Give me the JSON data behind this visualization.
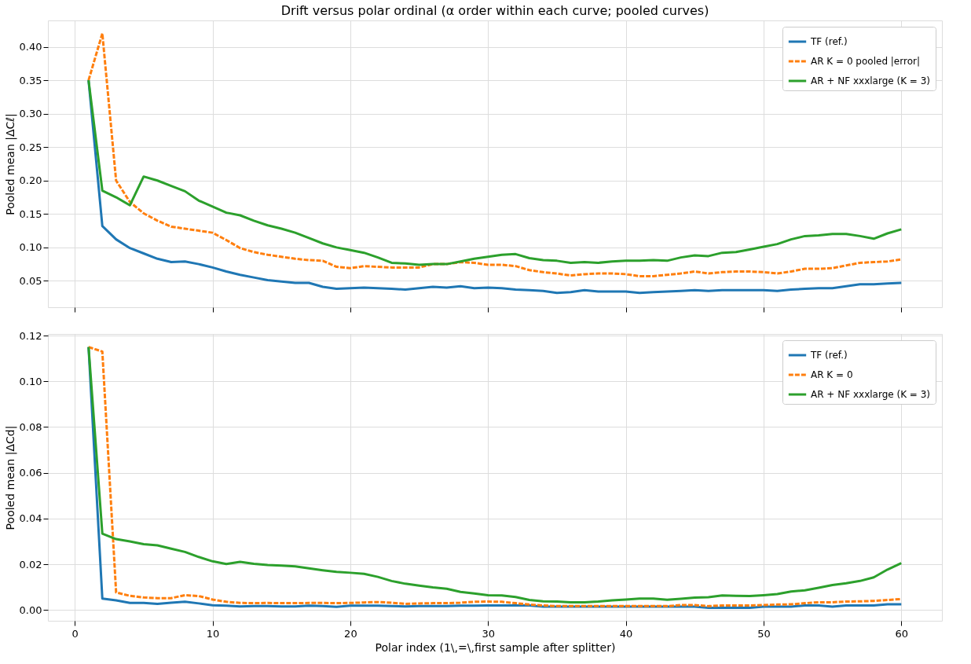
{
  "chart_data": [
    {
      "type": "line",
      "title": "Drift versus polar ordinal (α order within each curve; pooled curves)",
      "ylabel": "Pooled mean |ΔCℓ|",
      "x": [
        1,
        2,
        3,
        4,
        5,
        6,
        7,
        8,
        9,
        10,
        11,
        12,
        13,
        14,
        15,
        16,
        17,
        18,
        19,
        20,
        21,
        22,
        23,
        24,
        25,
        26,
        27,
        28,
        29,
        30,
        31,
        32,
        33,
        34,
        35,
        36,
        37,
        38,
        39,
        40,
        41,
        42,
        43,
        44,
        45,
        46,
        47,
        48,
        49,
        50,
        51,
        52,
        53,
        54,
        55,
        56,
        57,
        58,
        59,
        60
      ],
      "xlim": [
        -1.95,
        62.95
      ],
      "xticks": [
        0,
        10,
        20,
        30,
        40,
        50,
        60
      ],
      "ylim": [
        0.0105,
        0.4395
      ],
      "yticks": [
        {
          "value": 0.05,
          "label": "0.05"
        },
        {
          "value": 0.1,
          "label": "0.10"
        },
        0.15,
        {
          "value": 0.2,
          "label": "0.20"
        },
        0.25,
        {
          "value": 0.3,
          "label": "0.30"
        },
        0.35,
        {
          "value": 0.4,
          "label": "0.40"
        }
      ],
      "grid": true,
      "legend": "top right",
      "tick_labels": "y",
      "series": [
        {
          "name": "TF (ref.)",
          "color": "#1f77b4",
          "line_style": "solid",
          "values": [
            0.35,
            0.132,
            0.112,
            0.099,
            0.091,
            0.083,
            0.078,
            0.079,
            0.075,
            0.07,
            0.064,
            0.059,
            0.055,
            0.051,
            0.049,
            0.047,
            0.047,
            0.041,
            0.038,
            0.039,
            0.04,
            0.039,
            0.038,
            0.037,
            0.039,
            0.041,
            0.04,
            0.042,
            0.039,
            0.04,
            0.039,
            0.037,
            0.036,
            0.035,
            0.032,
            0.033,
            0.036,
            0.034,
            0.034,
            0.034,
            0.032,
            0.033,
            0.034,
            0.035,
            0.036,
            0.035,
            0.036,
            0.036,
            0.036,
            0.036,
            0.035,
            0.037,
            0.038,
            0.039,
            0.039,
            0.042,
            0.045,
            0.045,
            0.046,
            0.047
          ]
        },
        {
          "name": "AR K = 0 pooled |error|",
          "color": "#ff7f0e",
          "line_style": "dashed",
          "values": [
            0.35,
            0.42,
            0.2,
            0.168,
            0.151,
            0.14,
            0.131,
            0.128,
            0.125,
            0.122,
            0.111,
            0.099,
            0.093,
            0.089,
            0.086,
            0.083,
            0.081,
            0.08,
            0.071,
            0.069,
            0.072,
            0.071,
            0.07,
            0.07,
            0.07,
            0.075,
            0.075,
            0.078,
            0.077,
            0.074,
            0.074,
            0.072,
            0.066,
            0.063,
            0.061,
            0.058,
            0.06,
            0.061,
            0.061,
            0.06,
            0.057,
            0.057,
            0.059,
            0.061,
            0.064,
            0.061,
            0.063,
            0.064,
            0.064,
            0.063,
            0.061,
            0.064,
            0.068,
            0.068,
            0.069,
            0.073,
            0.077,
            0.078,
            0.079,
            0.082
          ]
        },
        {
          "name": "AR + NF xxxlarge (K = 3)",
          "color": "#2ca02c",
          "line_style": "solid",
          "values": [
            0.35,
            0.185,
            0.175,
            0.163,
            0.206,
            0.2,
            0.192,
            0.184,
            0.17,
            0.161,
            0.152,
            0.148,
            0.14,
            0.133,
            0.128,
            0.122,
            0.114,
            0.106,
            0.1,
            0.096,
            0.092,
            0.085,
            0.077,
            0.076,
            0.074,
            0.075,
            0.075,
            0.079,
            0.083,
            0.086,
            0.089,
            0.09,
            0.084,
            0.081,
            0.08,
            0.077,
            0.078,
            0.077,
            0.079,
            0.08,
            0.08,
            0.081,
            0.08,
            0.085,
            0.088,
            0.087,
            0.092,
            0.093,
            0.097,
            0.101,
            0.105,
            0.112,
            0.117,
            0.118,
            0.12,
            0.12,
            0.117,
            0.113,
            0.121,
            0.127
          ]
        }
      ]
    },
    {
      "type": "line",
      "xlabel": "Polar index (1\\,=\\,first sample after splitter)",
      "ylabel": "Pooled mean |ΔCd|",
      "x": [
        1,
        2,
        3,
        4,
        5,
        6,
        7,
        8,
        9,
        10,
        11,
        12,
        13,
        14,
        15,
        16,
        17,
        18,
        19,
        20,
        21,
        22,
        23,
        24,
        25,
        26,
        27,
        28,
        29,
        30,
        31,
        32,
        33,
        34,
        35,
        36,
        37,
        38,
        39,
        40,
        41,
        42,
        43,
        44,
        45,
        46,
        47,
        48,
        49,
        50,
        51,
        52,
        53,
        54,
        55,
        56,
        57,
        58,
        59,
        60
      ],
      "xlim": [
        -1.95,
        62.95
      ],
      "xticks": [
        0,
        10,
        20,
        30,
        40,
        50,
        60
      ],
      "ylim": [
        -0.0047,
        0.1207
      ],
      "yticks": [
        {
          "value": 0,
          "label": "0.00"
        },
        {
          "value": 0.02,
          "label": "0.02"
        },
        {
          "value": 0.04,
          "label": "0.04"
        },
        {
          "value": 0.06,
          "label": "0.06"
        },
        {
          "value": 0.08,
          "label": "0.08"
        },
        {
          "value": 0.1,
          "label": "0.10"
        },
        {
          "value": 0.12,
          "label": "0.12"
        }
      ],
      "grid": true,
      "legend": "top right",
      "series": [
        {
          "name": "TF (ref.)",
          "color": "#1f77b4",
          "line_style": "solid",
          "values": [
            0.115,
            0.005,
            0.0042,
            0.0031,
            0.0031,
            0.0027,
            0.0032,
            0.0036,
            0.0029,
            0.0021,
            0.0019,
            0.0016,
            0.0017,
            0.0017,
            0.0016,
            0.0016,
            0.0019,
            0.0017,
            0.0014,
            0.0019,
            0.0019,
            0.0019,
            0.0017,
            0.0016,
            0.0017,
            0.0017,
            0.0017,
            0.0019,
            0.0019,
            0.002,
            0.002,
            0.002,
            0.002,
            0.0015,
            0.0015,
            0.0015,
            0.0015,
            0.0015,
            0.0015,
            0.0015,
            0.0015,
            0.0015,
            0.0015,
            0.0015,
            0.0015,
            0.001,
            0.001,
            0.001,
            0.001,
            0.0015,
            0.0015,
            0.0015,
            0.002,
            0.002,
            0.0015,
            0.002,
            0.002,
            0.002,
            0.0025,
            0.0025
          ]
        },
        {
          "name": "AR K = 0",
          "color": "#ff7f0e",
          "line_style": "dashed",
          "values": [
            0.115,
            0.113,
            0.0077,
            0.0062,
            0.0055,
            0.0052,
            0.0052,
            0.0065,
            0.0061,
            0.0046,
            0.0036,
            0.0031,
            0.003,
            0.0031,
            0.003,
            0.003,
            0.0031,
            0.0031,
            0.003,
            0.0031,
            0.0033,
            0.0035,
            0.0032,
            0.0027,
            0.0029,
            0.003,
            0.003,
            0.0032,
            0.0036,
            0.0037,
            0.0036,
            0.003,
            0.0024,
            0.002,
            0.0017,
            0.0017,
            0.0017,
            0.0017,
            0.0017,
            0.0017,
            0.0017,
            0.0017,
            0.0017,
            0.0022,
            0.0022,
            0.0017,
            0.002,
            0.002,
            0.002,
            0.0022,
            0.0024,
            0.0025,
            0.003,
            0.0034,
            0.0034,
            0.0037,
            0.0038,
            0.004,
            0.0044,
            0.0048
          ]
        },
        {
          "name": "AR + NF xxxlarge (K = 3)",
          "color": "#2ca02c",
          "line_style": "solid",
          "values": [
            0.115,
            0.0334,
            0.031,
            0.03,
            0.0288,
            0.0283,
            0.0268,
            0.0254,
            0.0232,
            0.0213,
            0.0201,
            0.0211,
            0.0202,
            0.0197,
            0.0194,
            0.0191,
            0.0182,
            0.0174,
            0.0167,
            0.0163,
            0.0158,
            0.0145,
            0.0127,
            0.0115,
            0.0107,
            0.0099,
            0.0093,
            0.0079,
            0.0072,
            0.0065,
            0.0064,
            0.0057,
            0.0044,
            0.0038,
            0.0037,
            0.0034,
            0.0034,
            0.0037,
            0.0042,
            0.0046,
            0.005,
            0.005,
            0.0045,
            0.0049,
            0.0054,
            0.0056,
            0.0064,
            0.0062,
            0.0061,
            0.0065,
            0.007,
            0.0081,
            0.0086,
            0.0097,
            0.0109,
            0.0117,
            0.0127,
            0.0143,
            0.0177,
            0.0205
          ]
        }
      ]
    }
  ]
}
